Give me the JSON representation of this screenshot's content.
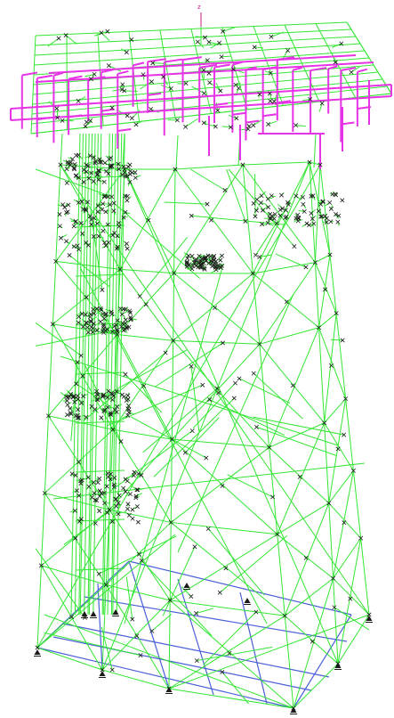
{
  "view": {
    "axis_marker": "z",
    "colors": {
      "background": "#ffffff",
      "jacket_members": "#33e633",
      "topside_piping": "#e633e6",
      "mudmat": "#4a5ed8",
      "nodes": "#1a1a1a",
      "axis": "#cc1a8a"
    }
  },
  "icons": {
    "node_marker": "cross-icon",
    "support": "pin-support-icon"
  }
}
